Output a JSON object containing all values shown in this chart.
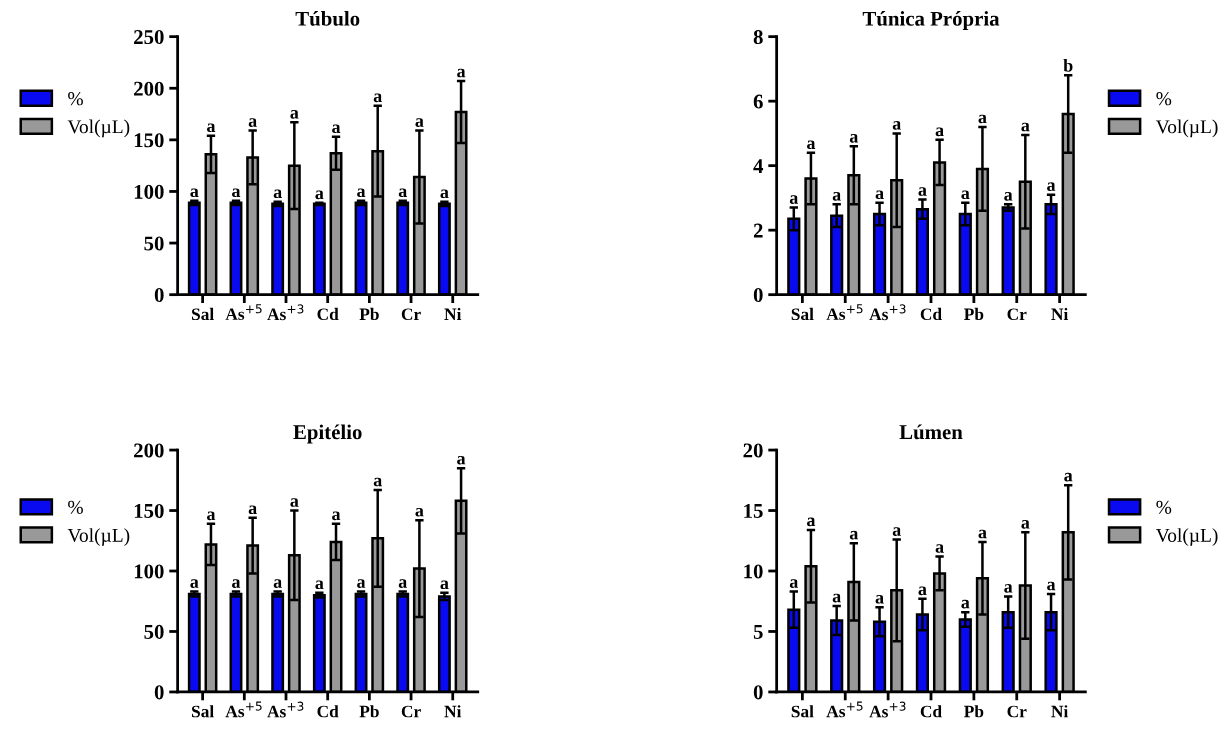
{
  "chart_data": [
    {
      "type": "bar",
      "title": "Túbulo",
      "categories": [
        "Sal",
        "As$^{+5}$",
        "As$^{+3}$",
        "Cd",
        "Pb",
        "Cr",
        "Ni"
      ],
      "ylim": [
        0,
        250
      ],
      "yticks": [
        0,
        50,
        100,
        150,
        200,
        250
      ],
      "grid": false,
      "legend": "left",
      "series": [
        {
          "name": "%",
          "color": "#0a0af0",
          "values": [
            89,
            89,
            88,
            88,
            89,
            89,
            88
          ],
          "errors": [
            2,
            2,
            2,
            1,
            2,
            2,
            2
          ],
          "value_labels": [
            "a",
            "a",
            "a",
            "a",
            "a",
            "a",
            "a"
          ]
        },
        {
          "name": "Vol(µL)",
          "color": "#999999",
          "values": [
            136,
            133,
            125,
            137,
            139,
            114,
            177
          ],
          "errors": [
            18,
            26,
            42,
            16,
            44,
            45,
            30
          ],
          "value_labels": [
            "a",
            "a",
            "a",
            "a",
            "a",
            "a",
            "a"
          ]
        }
      ]
    },
    {
      "type": "bar",
      "title": "Túnica Própria",
      "categories": [
        "Sal",
        "As$^{+5}$",
        "As$^{+3}$",
        "Cd",
        "Pb",
        "Cr",
        "Ni"
      ],
      "ylim": [
        0,
        8
      ],
      "yticks": [
        0,
        2,
        4,
        6,
        8
      ],
      "grid": false,
      "legend": "right",
      "series": [
        {
          "name": "%",
          "color": "#0a0af0",
          "values": [
            2.35,
            2.45,
            2.5,
            2.65,
            2.5,
            2.7,
            2.8
          ],
          "errors": [
            0.35,
            0.35,
            0.35,
            0.3,
            0.35,
            0.1,
            0.3
          ],
          "value_labels": [
            "a",
            "a",
            "a",
            "a",
            "a",
            "a",
            "a"
          ]
        },
        {
          "name": "Vol(µL)",
          "color": "#999999",
          "values": [
            3.6,
            3.7,
            3.55,
            4.1,
            3.9,
            3.5,
            5.6
          ],
          "errors": [
            0.8,
            0.9,
            1.45,
            0.7,
            1.3,
            1.45,
            1.2
          ],
          "value_labels": [
            "a",
            "a",
            "a",
            "a",
            "a",
            "a",
            "b"
          ]
        }
      ]
    },
    {
      "type": "bar",
      "title": "Epitélio",
      "categories": [
        "Sal",
        "As$^{+5}$",
        "As$^{+3}$",
        "Cd",
        "Pb",
        "Cr",
        "Ni"
      ],
      "ylim": [
        0,
        200
      ],
      "yticks": [
        0,
        50,
        100,
        150,
        200
      ],
      "grid": false,
      "legend": "left",
      "series": [
        {
          "name": "%",
          "color": "#0a0af0",
          "values": [
            81,
            81,
            81,
            80,
            81,
            81,
            79
          ],
          "errors": [
            2,
            2,
            2,
            2,
            2,
            2,
            3
          ],
          "value_labels": [
            "a",
            "a",
            "a",
            "a",
            "a",
            "a",
            "a"
          ]
        },
        {
          "name": "Vol(µL)",
          "color": "#999999",
          "values": [
            122,
            121,
            113,
            124,
            127,
            102,
            158
          ],
          "errors": [
            17,
            23,
            37,
            15,
            40,
            40,
            27
          ],
          "value_labels": [
            "a",
            "a",
            "a",
            "a",
            "a",
            "a",
            "a"
          ]
        }
      ]
    },
    {
      "type": "bar",
      "title": "Lúmen",
      "categories": [
        "Sal",
        "As$^{+5}$",
        "As$^{+3}$",
        "Cd",
        "Pb",
        "Cr",
        "Ni"
      ],
      "ylim": [
        0,
        20
      ],
      "yticks": [
        0,
        5,
        10,
        15,
        20
      ],
      "grid": false,
      "legend": "right",
      "series": [
        {
          "name": "%",
          "color": "#0a0af0",
          "values": [
            6.8,
            5.9,
            5.8,
            6.4,
            6.0,
            6.6,
            6.6
          ],
          "errors": [
            1.5,
            1.2,
            1.2,
            1.3,
            0.6,
            1.3,
            1.5
          ],
          "value_labels": [
            "a",
            "a",
            "a",
            "a",
            "a",
            "a",
            "a"
          ]
        },
        {
          "name": "Vol(µL)",
          "color": "#999999",
          "values": [
            10.4,
            9.1,
            8.4,
            9.8,
            9.4,
            8.8,
            13.2
          ],
          "errors": [
            3.0,
            3.2,
            4.2,
            1.4,
            3.0,
            4.4,
            3.9
          ],
          "value_labels": [
            "a",
            "a",
            "a",
            "a",
            "a",
            "a",
            "a"
          ]
        }
      ]
    }
  ]
}
